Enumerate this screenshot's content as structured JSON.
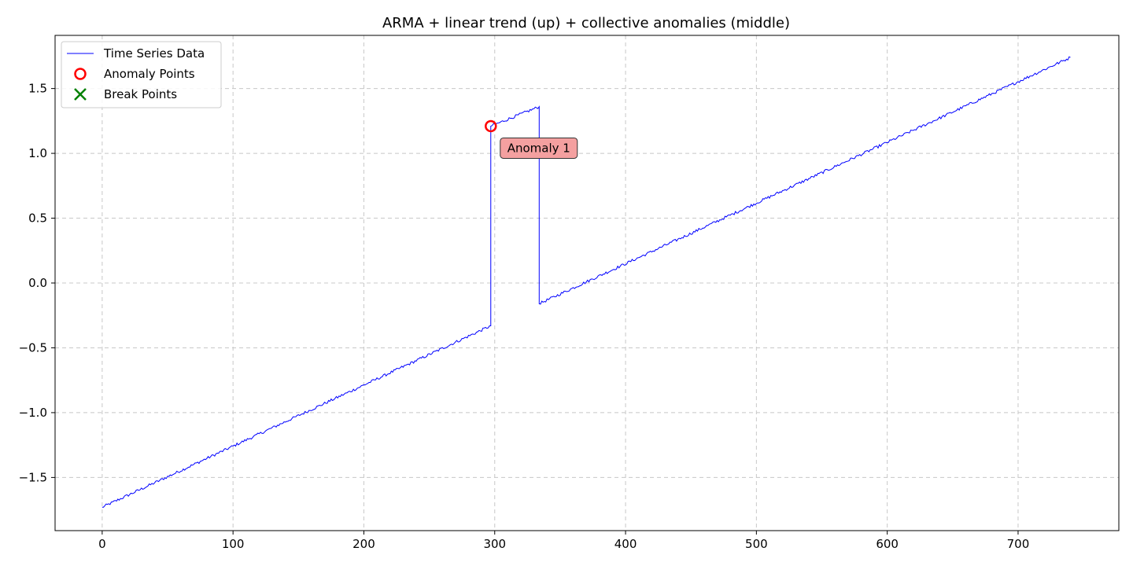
{
  "chart_data": {
    "type": "line",
    "title": "ARMA + linear trend (up) + collective anomalies (middle)",
    "xlabel": "",
    "ylabel": "",
    "xlim": [
      -36,
      777
    ],
    "ylim": [
      -1.91,
      1.91
    ],
    "grid": true,
    "legend_position": "top-left",
    "x_ticks": [
      0,
      100,
      200,
      300,
      400,
      500,
      600,
      700
    ],
    "x_tick_labels": [
      "0",
      "100",
      "200",
      "300",
      "400",
      "500",
      "600",
      "700"
    ],
    "y_ticks": [
      -1.5,
      -1.0,
      -0.5,
      0.0,
      0.5,
      1.0,
      1.5
    ],
    "y_tick_labels": [
      "−1.5",
      "−1.0",
      "−0.5",
      "0.0",
      "0.5",
      "1.0",
      "1.5"
    ],
    "series": [
      {
        "name": "Time Series Data",
        "color": "#0000ff",
        "segments": [
          {
            "x": [
              0,
              297
            ],
            "y": [
              -1.73,
              -0.33
            ]
          },
          {
            "x": [
              297,
              334
            ],
            "y": [
              1.21,
              1.36
            ]
          },
          {
            "x": [
              334,
              740
            ],
            "y": [
              -0.16,
              1.74
            ]
          }
        ]
      },
      {
        "name": "Anomaly Points",
        "color": "#ff0000",
        "marker": "circle",
        "points": [
          {
            "x": 297,
            "y": 1.21
          }
        ]
      },
      {
        "name": "Break Points",
        "color": "#008000",
        "marker": "x",
        "points": []
      }
    ],
    "annotations": [
      {
        "text": "Anomaly 1",
        "x": 297,
        "y": 1.21,
        "color": "#f4a0a0"
      }
    ]
  }
}
